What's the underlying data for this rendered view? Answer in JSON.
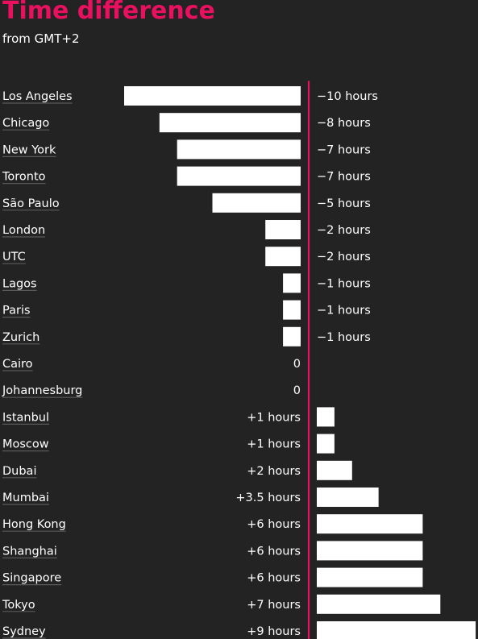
{
  "colors": {
    "background": "#232323",
    "accent": "#e8105f",
    "bar": "#ffffff",
    "text": "#ffffff",
    "underline": "#5a5a5a"
  },
  "chart_data": {
    "type": "bar",
    "orientation": "horizontal",
    "title": "Time difference",
    "subtitle": "from GMT+2",
    "xlim": [
      -10,
      9
    ],
    "grid": false,
    "categories": [
      "Los Angeles",
      "Chicago",
      "New York",
      "Toronto",
      "São Paulo",
      "London",
      "UTC",
      "Lagos",
      "Paris",
      "Zurich",
      "Cairo",
      "Johannesburg",
      "Istanbul",
      "Moscow",
      "Dubai",
      "Mumbai",
      "Hong Kong",
      "Shanghai",
      "Singapore",
      "Tokyo",
      "Sydney"
    ],
    "values": [
      -10,
      -8,
      -7,
      -7,
      -5,
      -2,
      -2,
      -1,
      -1,
      -1,
      0,
      0,
      1,
      1,
      2,
      3.5,
      6,
      6,
      6,
      7,
      9
    ],
    "value_labels": [
      "−10 hours",
      "−8 hours",
      "−7 hours",
      "−7 hours",
      "−5 hours",
      "−2 hours",
      "−2 hours",
      "−1 hours",
      "−1 hours",
      "−1 hours",
      "0",
      "0",
      "+1 hours",
      "+1 hours",
      "+2 hours",
      "+3.5 hours",
      "+6 hours",
      "+6 hours",
      "+6 hours",
      "+7 hours",
      "+9 hours"
    ]
  }
}
